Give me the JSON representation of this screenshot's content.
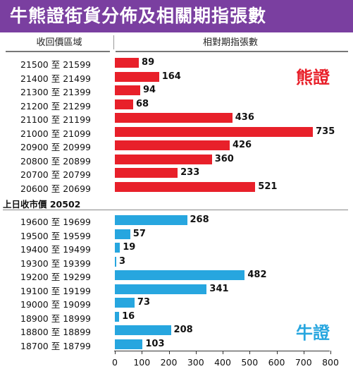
{
  "title": "牛熊證街貨分佈及相關期指張數",
  "header_left": "收回價區域",
  "header_right": "相對期指張數",
  "spot_label": "上日收市價 20502",
  "colors": {
    "title_bg": "#7a3fa0",
    "bear": "#e8202a",
    "bull": "#27a6df"
  },
  "chart_data": {
    "type": "bar",
    "orientation": "horizontal",
    "xlim": [
      0,
      800
    ],
    "xticks": [
      "0",
      "100",
      "200",
      "300",
      "400",
      "500",
      "600",
      "700",
      "800"
    ],
    "series": [
      {
        "name": "熊證",
        "categories": [
          "21500 至 21599",
          "21400 至 21499",
          "21300 至 21399",
          "21200 至 21299",
          "21100 至 21199",
          "21000 至 21099",
          "20900 至 20999",
          "20800 至 20899",
          "20700 至 20799",
          "20600 至 20699"
        ],
        "values": [
          89,
          164,
          94,
          68,
          436,
          735,
          426,
          360,
          233,
          521
        ]
      },
      {
        "name": "牛證",
        "categories": [
          "19600 至 19699",
          "19500 至 19599",
          "19400 至 19499",
          "19300 至 19399",
          "19200 至 19299",
          "19100 至 19199",
          "19000 至 19099",
          "18900 至 18999",
          "18800 至 18899",
          "18700 至 18799"
        ],
        "values": [
          268,
          57,
          19,
          3,
          482,
          341,
          73,
          16,
          208,
          103
        ]
      }
    ]
  }
}
